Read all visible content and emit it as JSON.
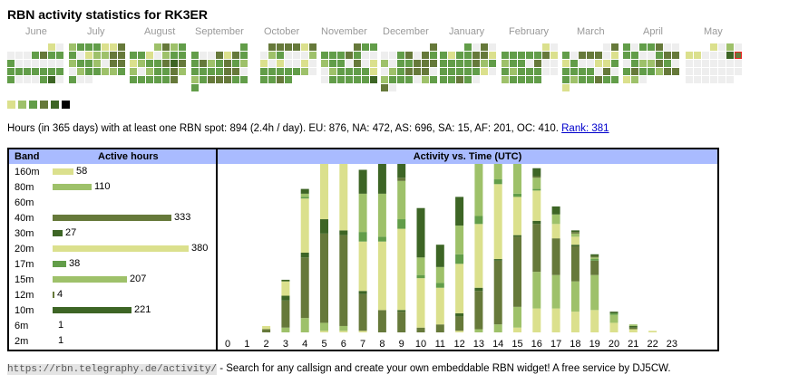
{
  "title": "RBN activity statistics for RK3ER",
  "calendar": {
    "colors": {
      "0": "#eeeeee",
      "1": "#dbe08d",
      "2": "#9ec16a",
      "3": "#629d49",
      "4": "#66793a",
      "5": "#3d6525",
      "6": "#000000",
      "7": "#66793a"
    },
    "months": [
      {
        "label": "June",
        "rows": [
          ".....10",
          "0003433",
          "3000000",
          "3333333",
          "3000350"
        ]
      },
      {
        "label": "July",
        "rows": [
          "2333114",
          "3012244",
          "2332044",
          "0233223",
          "300...."
        ]
      },
      {
        "label": "August",
        "rows": [
          "...2423",
          "3310233",
          "1233454",
          "2023342",
          "333334."
        ]
      },
      {
        "label": "September",
        "rows": [
          "......3",
          "3004143",
          "3423432",
          "3333440",
          "2344433",
          "3......"
        ]
      },
      {
        "label": "October",
        "rows": [
          ".444414",
          "0230002",
          "1010010",
          "3333320",
          "3343..."
        ]
      },
      {
        "label": "November",
        "rows": [
          "....433",
          "3334300",
          "2330401",
          "0233331",
          "0333335"
        ]
      },
      {
        "label": "December",
        "rows": [
          "......4",
          "0034043",
          "2033444",
          "0234440",
          "2333023",
          "40....."
        ]
      },
      {
        "label": "January",
        "rows": [
          "...3040",
          "3133441",
          "3333423",
          "3333310",
          "33430.."
        ]
      },
      {
        "label": "February",
        "rows": [
          ".....10",
          "3333341",
          "2330400",
          "3233300",
          "23333.."
        ]
      },
      {
        "label": "March",
        "rows": [
          ".....04",
          "3044401",
          "1300113",
          "3333040",
          "3233433",
          "1......"
        ]
      },
      {
        "label": "April",
        "rows": [
          "3033400",
          "3300344",
          "0322430",
          "3433244",
          "120...."
        ]
      },
      {
        "label": "May",
        "rows": [
          "...1020",
          "1100057",
          "0000000",
          "0000000",
          "000000."
        ]
      }
    ],
    "legend_levels": [
      "1",
      "2",
      "3",
      "4",
      "5",
      "6"
    ]
  },
  "summary": {
    "text": "Hours (in 365 days) with at least one RBN spot: 894 (2.4h / day). EU: 876, NA: 472, AS: 696, SA: 15, AF: 201, OC: 410.",
    "rank_link": "Rank: 381"
  },
  "bands": {
    "header_band": "Band",
    "header_hours": "Active hours",
    "max": 380,
    "rows": [
      {
        "band": "160m",
        "hours": 58,
        "color": "#dbe08d"
      },
      {
        "band": "80m",
        "hours": 110,
        "color": "#9ec16a"
      },
      {
        "band": "60m",
        "hours": null,
        "color": "#629d49"
      },
      {
        "band": "40m",
        "hours": 333,
        "color": "#66793a"
      },
      {
        "band": "30m",
        "hours": 27,
        "color": "#3d6525"
      },
      {
        "band": "20m",
        "hours": 380,
        "color": "#dbe08d"
      },
      {
        "band": "17m",
        "hours": 38,
        "color": "#629d49"
      },
      {
        "band": "15m",
        "hours": 207,
        "color": "#9ec16a"
      },
      {
        "band": "12m",
        "hours": 4,
        "color": "#66793a"
      },
      {
        "band": "10m",
        "hours": 221,
        "color": "#3d6525"
      },
      {
        "band": "6m",
        "hours": 1,
        "color": "#dbe08d"
      },
      {
        "band": "2m",
        "hours": 1,
        "color": "#9ec16a"
      }
    ]
  },
  "chart_data": {
    "type": "bar",
    "stacked": true,
    "title": "Activity vs. Time (UTC)",
    "xlabel": "",
    "ylabel": "",
    "categories": [
      "0",
      "1",
      "2",
      "3",
      "4",
      "5",
      "6",
      "7",
      "8",
      "9",
      "10",
      "11",
      "12",
      "13",
      "14",
      "15",
      "16",
      "17",
      "18",
      "19",
      "20",
      "21",
      "22",
      "23"
    ],
    "ylim": [
      0,
      100
    ],
    "series": [
      {
        "name": "160m",
        "color": "#dbe08d",
        "values": [
          0,
          0,
          0,
          0,
          0,
          1,
          1,
          1,
          0,
          0,
          0,
          0,
          1,
          0,
          0,
          3,
          15,
          15,
          13,
          14,
          6,
          2,
          1,
          0
        ]
      },
      {
        "name": "80m",
        "color": "#9ec16a",
        "values": [
          0,
          0,
          0,
          3,
          9,
          5,
          3,
          0,
          0,
          0,
          0,
          0,
          0,
          2,
          5,
          13,
          23,
          21,
          19,
          22,
          5,
          0,
          0,
          0
        ]
      },
      {
        "name": "40m",
        "color": "#66793a",
        "values": [
          0,
          0,
          2,
          17,
          38,
          56,
          57,
          23,
          14,
          13,
          3,
          5,
          9,
          24,
          40,
          44,
          30,
          23,
          22,
          9,
          0,
          1,
          0,
          0
        ]
      },
      {
        "name": "30m",
        "color": "#3d6525",
        "values": [
          0,
          0,
          0,
          3,
          3,
          9,
          3,
          2,
          0,
          1,
          0,
          0,
          2,
          2,
          1,
          1,
          2,
          0,
          1,
          0,
          0,
          1,
          0,
          0
        ]
      },
      {
        "name": "20m",
        "color": "#dbe08d",
        "values": [
          0,
          0,
          2,
          9,
          34,
          43,
          48,
          31,
          43,
          51,
          31,
          23,
          31,
          40,
          47,
          24,
          19,
          9,
          5,
          0,
          0,
          0,
          0,
          0
        ]
      },
      {
        "name": "17m",
        "color": "#629d49",
        "values": [
          0,
          0,
          0,
          0,
          1,
          1,
          1,
          6,
          3,
          6,
          2,
          3,
          6,
          5,
          3,
          2,
          1,
          0,
          0,
          1,
          1,
          0,
          0,
          0
        ]
      },
      {
        "name": "15m",
        "color": "#9ec16a",
        "values": [
          0,
          0,
          0,
          0,
          2,
          19,
          32,
          24,
          27,
          24,
          11,
          10,
          18,
          35,
          28,
          19,
          7,
          6,
          2,
          1,
          0,
          1,
          0,
          0
        ]
      },
      {
        "name": "12m",
        "color": "#66793a",
        "values": [
          0,
          0,
          0,
          0,
          0,
          0,
          0,
          0,
          0,
          2,
          0,
          0,
          0,
          1,
          0,
          1,
          1,
          0,
          1,
          1,
          0,
          0,
          0,
          0
        ]
      },
      {
        "name": "10m",
        "color": "#3d6525",
        "values": [
          0,
          0,
          0,
          1,
          3,
          2,
          9,
          15,
          26,
          36,
          31,
          14,
          18,
          47,
          53,
          15,
          5,
          5,
          1,
          1,
          1,
          0,
          0,
          0
        ]
      }
    ]
  },
  "footer": {
    "url": "https://rbn.telegraphy.de/activity/",
    "text": " - Search for any callsign and create your own embeddable RBN widget! A free service by DJ5CW."
  }
}
